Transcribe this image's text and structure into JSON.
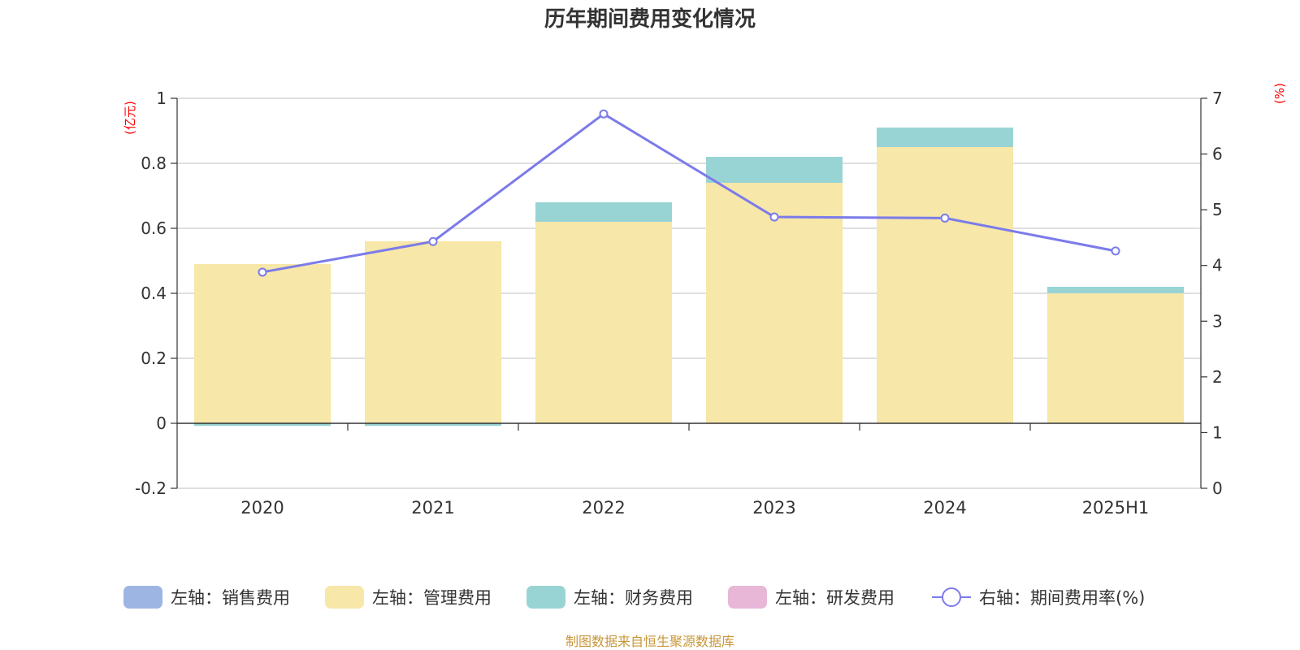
{
  "chart_data": {
    "type": "bar",
    "title": "历年期间费用变化情况",
    "categories": [
      "2020",
      "2021",
      "2022",
      "2023",
      "2024",
      "2025H1"
    ],
    "left_axis": {
      "unit": "(亿元)",
      "ylim": [
        -0.2,
        1
      ],
      "ticks": [
        "-0.2",
        "0",
        "0.2",
        "0.4",
        "0.6",
        "0.8",
        "1"
      ]
    },
    "right_axis": {
      "unit": "(%)",
      "ylim": [
        0,
        7
      ],
      "ticks": [
        "0",
        "1",
        "2",
        "3",
        "4",
        "5",
        "6",
        "7"
      ]
    },
    "stacked": true,
    "grid": true,
    "legend_position": "bottom",
    "series": [
      {
        "name": "左轴：销售费用",
        "axis": "left",
        "kind": "bar",
        "color": "#9db5e3",
        "values": [
          0,
          0,
          0,
          0,
          0,
          0
        ]
      },
      {
        "name": "左轴：管理费用",
        "axis": "left",
        "kind": "bar",
        "color": "#f7e7a8",
        "values": [
          0.49,
          0.56,
          0.62,
          0.74,
          0.85,
          0.4
        ]
      },
      {
        "name": "左轴：财务费用",
        "axis": "left",
        "kind": "bar",
        "color": "#99d4d4",
        "values": [
          -0.008,
          -0.008,
          0.06,
          0.08,
          0.06,
          0.02
        ]
      },
      {
        "name": "左轴：研发费用",
        "axis": "left",
        "kind": "bar",
        "color": "#e8b7d7",
        "values": [
          0,
          0,
          0,
          0,
          0,
          0
        ]
      },
      {
        "name": "右轴：期间费用率(%)",
        "axis": "right",
        "kind": "line",
        "color": "#7b7bea",
        "values": [
          3.88,
          4.43,
          6.72,
          4.87,
          4.85,
          4.26
        ]
      }
    ]
  },
  "source_note": "制图数据来自恒生聚源数据库"
}
